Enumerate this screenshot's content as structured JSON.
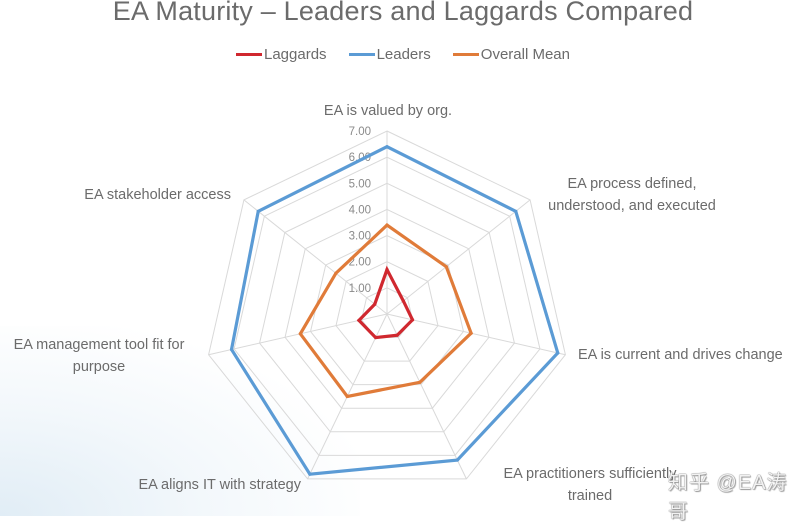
{
  "chart_data": {
    "type": "radar",
    "title": "EA Maturity – Leaders and Laggards Compared",
    "categories": [
      [
        "EA is valued by org."
      ],
      [
        "EA process defined,",
        "understood, and executed"
      ],
      [
        "EA is current and drives change"
      ],
      [
        "EA practitioners sufficiently",
        "trained"
      ],
      [
        "EA aligns IT with strategy"
      ],
      [
        "EA management tool fit for",
        "purpose"
      ],
      [
        "EA stakeholder access"
      ]
    ],
    "category_names": [
      "EA is valued by org.",
      "EA process defined, understood, and executed",
      "EA is current and drives change",
      "EA practitioners sufficiently trained",
      "EA aligns IT with strategy",
      "EA management tool fit for purpose",
      "EA stakeholder access"
    ],
    "series": [
      {
        "name": "Laggards",
        "color": "#d0282f",
        "values": [
          1.7,
          0.8,
          1.0,
          0.9,
          1.0,
          1.1,
          0.6
        ]
      },
      {
        "name": "Leaders",
        "color": "#5b9bd5",
        "values": [
          6.4,
          6.3,
          6.7,
          6.2,
          6.8,
          6.1,
          6.3
        ]
      },
      {
        "name": "Overall Mean",
        "color": "#e07b39",
        "values": [
          3.4,
          2.9,
          3.3,
          2.9,
          3.5,
          3.4,
          2.5
        ]
      }
    ],
    "rlim": [
      0,
      7
    ],
    "ticks": [
      "1.00",
      "2.00",
      "3.00",
      "4.00",
      "5.00",
      "6.00",
      "7.00"
    ],
    "tick_values": [
      1,
      2,
      3,
      4,
      5,
      6,
      7
    ],
    "grid": true,
    "legend_position": "top-center"
  },
  "watermark": "知乎 @EA涛哥"
}
